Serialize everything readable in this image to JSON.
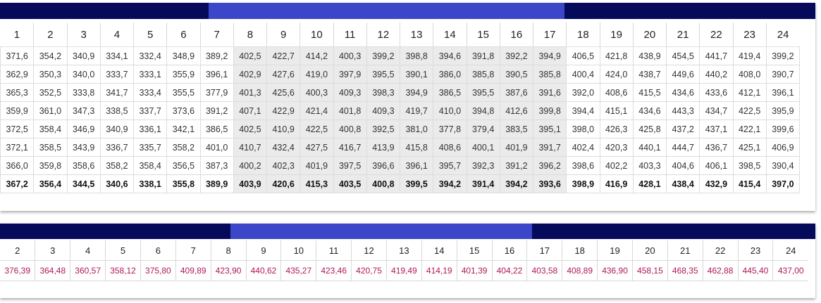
{
  "table1": {
    "headers": [
      "1",
      "2",
      "3",
      "4",
      "5",
      "6",
      "7",
      "8",
      "9",
      "10",
      "11",
      "12",
      "13",
      "14",
      "15",
      "16",
      "17",
      "18",
      "19",
      "20",
      "21",
      "22",
      "23",
      "24"
    ],
    "rows": [
      [
        "371,6",
        "354,2",
        "340,9",
        "334,1",
        "332,4",
        "348,9",
        "389,2",
        "402,5",
        "422,7",
        "414,2",
        "400,3",
        "399,2",
        "398,8",
        "394,6",
        "391,8",
        "392,2",
        "394,9",
        "406,5",
        "421,8",
        "438,9",
        "454,5",
        "441,7",
        "419,4",
        "399,2"
      ],
      [
        "362,9",
        "350,3",
        "340,0",
        "333,7",
        "333,1",
        "355,9",
        "396,1",
        "402,9",
        "427,6",
        "419,0",
        "397,9",
        "395,5",
        "390,1",
        "386,0",
        "385,8",
        "390,5",
        "385,8",
        "400,4",
        "424,0",
        "438,7",
        "449,6",
        "440,2",
        "408,0",
        "390,7"
      ],
      [
        "365,3",
        "352,5",
        "333,8",
        "341,7",
        "333,4",
        "355,5",
        "377,9",
        "401,3",
        "425,6",
        "400,3",
        "409,3",
        "398,3",
        "394,9",
        "386,5",
        "395,5",
        "387,6",
        "391,6",
        "392,0",
        "408,6",
        "415,5",
        "434,6",
        "433,6",
        "412,1",
        "396,1"
      ],
      [
        "359,9",
        "361,0",
        "347,3",
        "338,5",
        "337,7",
        "373,6",
        "391,2",
        "407,1",
        "422,9",
        "421,4",
        "401,8",
        "409,3",
        "419,7",
        "410,0",
        "394,8",
        "412,6",
        "399,8",
        "394,4",
        "415,1",
        "434,6",
        "443,3",
        "434,7",
        "422,5",
        "395,9"
      ],
      [
        "372,5",
        "358,4",
        "346,9",
        "340,9",
        "336,1",
        "342,1",
        "386,5",
        "402,5",
        "410,9",
        "422,5",
        "400,8",
        "392,5",
        "381,0",
        "377,8",
        "379,4",
        "383,5",
        "395,1",
        "398,0",
        "426,3",
        "425,8",
        "437,2",
        "437,1",
        "422,1",
        "399,6"
      ],
      [
        "372,1",
        "358,5",
        "343,9",
        "336,7",
        "335,7",
        "358,2",
        "401,0",
        "410,7",
        "432,4",
        "427,5",
        "416,7",
        "413,9",
        "415,8",
        "408,6",
        "400,1",
        "401,9",
        "391,7",
        "402,4",
        "420,3",
        "440,1",
        "444,7",
        "436,7",
        "425,1",
        "406,9"
      ],
      [
        "366,0",
        "359,8",
        "358,6",
        "358,2",
        "358,4",
        "356,5",
        "387,3",
        "400,2",
        "402,3",
        "401,9",
        "397,5",
        "396,6",
        "396,1",
        "395,7",
        "392,3",
        "391,2",
        "396,2",
        "398,6",
        "402,2",
        "403,3",
        "404,6",
        "406,1",
        "398,5",
        "390,4"
      ]
    ],
    "totals": [
      "367,2",
      "356,4",
      "344,5",
      "340,6",
      "338,1",
      "355,8",
      "389,9",
      "403,9",
      "420,6",
      "415,3",
      "403,5",
      "400,8",
      "399,5",
      "394,2",
      "391,4",
      "394,2",
      "393,6",
      "398,9",
      "416,9",
      "428,1",
      "438,4",
      "432,9",
      "415,4",
      "397,0"
    ]
  },
  "table2": {
    "headers": [
      "2",
      "3",
      "4",
      "5",
      "6",
      "7",
      "8",
      "9",
      "10",
      "11",
      "12",
      "13",
      "14",
      "15",
      "16",
      "17",
      "18",
      "19",
      "20",
      "21",
      "22",
      "23",
      "24"
    ],
    "values": [
      "376,39",
      "364,48",
      "360,57",
      "358,12",
      "375,80",
      "409,89",
      "423,90",
      "440,62",
      "435,27",
      "423,46",
      "420,75",
      "419,49",
      "414,19",
      "401,39",
      "404,22",
      "403,58",
      "408,89",
      "436,90",
      "458,15",
      "468,35",
      "462,88",
      "445,40",
      "437,00"
    ]
  },
  "colors": {
    "header_dark": "#050a5a",
    "header_accent": "#3c46c8",
    "highlight_cell": "#ebebeb",
    "average_text": "#b0185a"
  }
}
